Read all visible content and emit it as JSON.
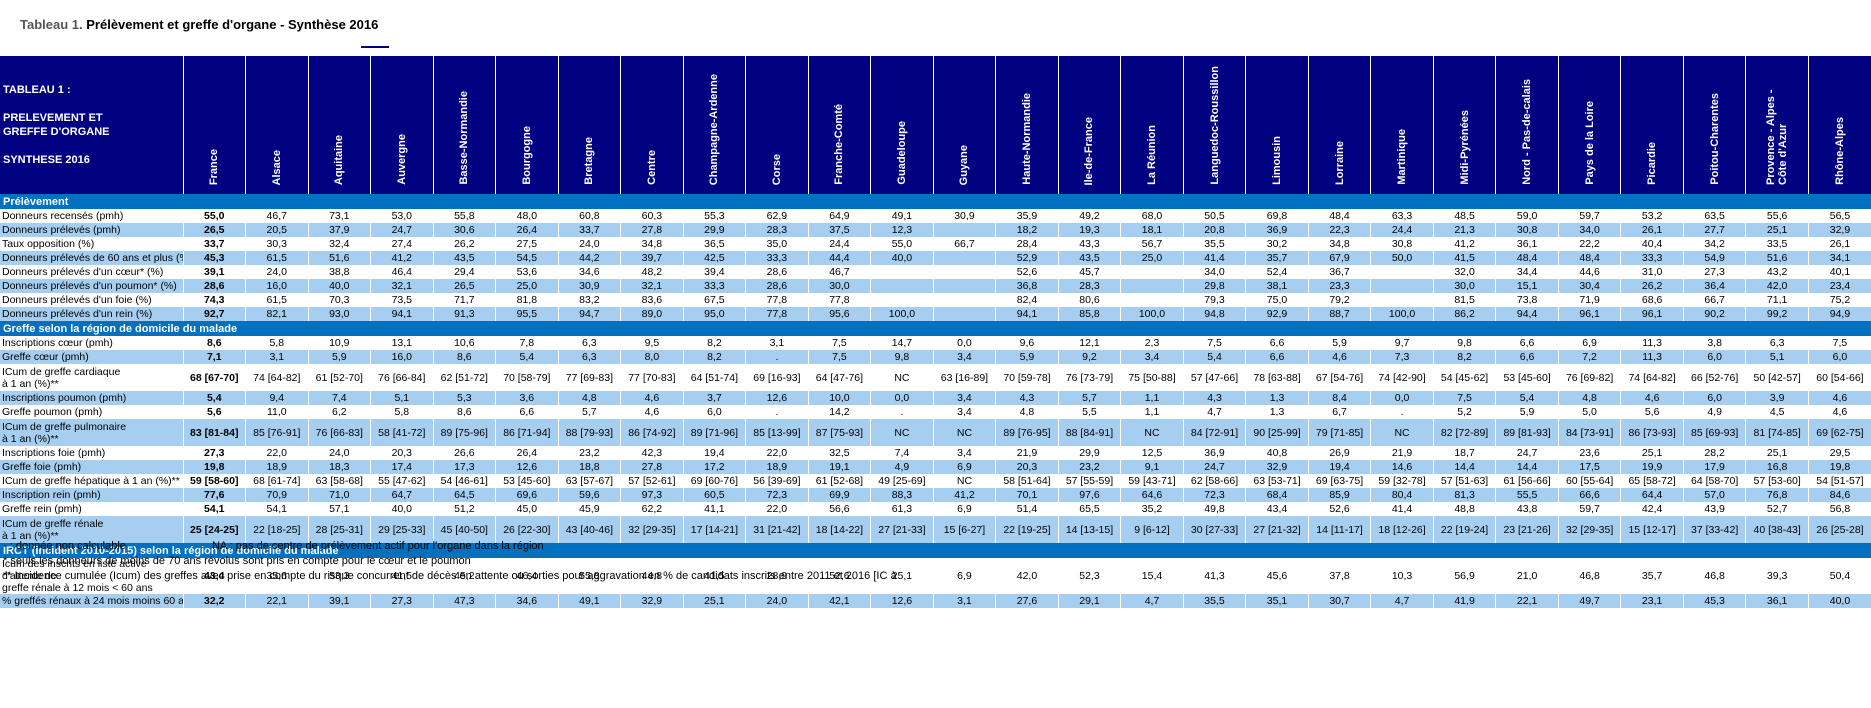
{
  "title": {
    "label": "Tableau 1.",
    "text": "Prélèvement et greffe d'organe - Synthèse 2016"
  },
  "header": {
    "intro": [
      "TABLEAU 1 :",
      "",
      "PRELEVEMENT ET",
      "GREFFE D'ORGANE",
      "",
      "SYNTHESE 2016"
    ],
    "regions": [
      "France",
      "Alsace",
      "Aquitaine",
      "Auvergne",
      "Basse-Normandie",
      "Bourgogne",
      "Bretagne",
      "Centre",
      "Champagne-Ardenne",
      "Corse",
      "Franche-Comté",
      "Guadeloupe",
      "Guyane",
      "Haute-Normandie",
      "Ile-de-France",
      "La Réunion",
      "Languedoc-Roussillon",
      "Limousin",
      "Lorraine",
      "Martinique",
      "Midi-Pyrénées",
      "Nord - Pas-de-calais",
      "Pays de la Loire",
      "Picardie",
      "Poitou-Charentes",
      "Provence - Alpes - Côte d'Azur",
      "Rhône-Alpes"
    ]
  },
  "sections": [
    {
      "title": "Prélèvement",
      "rows": [
        {
          "label": "Donneurs recensés (pmh)",
          "values": [
            "55,0",
            "46,7",
            "73,1",
            "53,0",
            "55,8",
            "48,0",
            "60,8",
            "60,3",
            "55,3",
            "62,9",
            "64,9",
            "49,1",
            "30,9",
            "35,9",
            "49,2",
            "68,0",
            "50,5",
            "69,8",
            "48,4",
            "63,3",
            "48,5",
            "59,0",
            "59,7",
            "53,2",
            "63,5",
            "55,6",
            "56,5"
          ]
        },
        {
          "label": "Donneurs prélevés (pmh)",
          "values": [
            "26,5",
            "20,5",
            "37,9",
            "24,7",
            "30,6",
            "26,4",
            "33,7",
            "27,8",
            "29,9",
            "28,3",
            "37,5",
            "12,3",
            "",
            "18,2",
            "19,3",
            "18,1",
            "20,8",
            "36,9",
            "22,3",
            "24,4",
            "21,3",
            "30,8",
            "34,0",
            "26,1",
            "27,7",
            "25,1",
            "32,9"
          ]
        },
        {
          "label": "Taux opposition (%)",
          "values": [
            "33,7",
            "30,3",
            "32,4",
            "27,4",
            "26,2",
            "27,5",
            "24,0",
            "34,8",
            "36,5",
            "35,0",
            "24,4",
            "55,0",
            "66,7",
            "28,4",
            "43,3",
            "56,7",
            "35,5",
            "30,2",
            "34,8",
            "30,8",
            "41,2",
            "36,1",
            "22,2",
            "40,4",
            "34,2",
            "33,5",
            "26,1"
          ]
        },
        {
          "label": "Donneurs prélevés de 60 ans et plus (%)",
          "values": [
            "45,3",
            "61,5",
            "51,6",
            "41,2",
            "43,5",
            "54,5",
            "44,2",
            "39,7",
            "42,5",
            "33,3",
            "44,4",
            "40,0",
            "",
            "52,9",
            "43,5",
            "25,0",
            "41,4",
            "35,7",
            "67,9",
            "50,0",
            "41,5",
            "48,4",
            "48,4",
            "33,3",
            "54,9",
            "51,6",
            "34,1"
          ]
        },
        {
          "label": "Donneurs prélevés d'un cœur* (%)",
          "values": [
            "39,1",
            "24,0",
            "38,8",
            "46,4",
            "29,4",
            "53,6",
            "34,6",
            "48,2",
            "39,4",
            "28,6",
            "46,7",
            "",
            "",
            "52,6",
            "45,7",
            "",
            "34,0",
            "52,4",
            "36,7",
            "",
            "32,0",
            "34,4",
            "44,6",
            "31,0",
            "27,3",
            "43,2",
            "40,1"
          ]
        },
        {
          "label": "Donneurs prélevés d'un poumon* (%)",
          "values": [
            "28,6",
            "16,0",
            "40,0",
            "32,1",
            "26,5",
            "25,0",
            "30,9",
            "32,1",
            "33,3",
            "28,6",
            "30,0",
            "",
            "",
            "36,8",
            "28,3",
            "",
            "29,8",
            "38,1",
            "23,3",
            "",
            "30,0",
            "15,1",
            "30,4",
            "26,2",
            "36,4",
            "42,0",
            "23,4"
          ]
        },
        {
          "label": "Donneurs prélevés d'un foie (%)",
          "values": [
            "74,3",
            "61,5",
            "70,3",
            "73,5",
            "71,7",
            "81,8",
            "83,2",
            "83,6",
            "67,5",
            "77,8",
            "77,8",
            "",
            "",
            "82,4",
            "80,6",
            "",
            "79,3",
            "75,0",
            "79,2",
            "",
            "81,5",
            "73,8",
            "71,9",
            "68,6",
            "66,7",
            "71,1",
            "75,2"
          ]
        },
        {
          "label": "Donneurs prélevés d'un rein (%)",
          "values": [
            "92,7",
            "82,1",
            "93,0",
            "94,1",
            "91,3",
            "95,5",
            "94,7",
            "89,0",
            "95,0",
            "77,8",
            "95,6",
            "100,0",
            "",
            "94,1",
            "85,8",
            "100,0",
            "94,8",
            "92,9",
            "88,7",
            "100,0",
            "86,2",
            "94,4",
            "96,1",
            "96,1",
            "90,2",
            "99,2",
            "94,9"
          ]
        }
      ]
    },
    {
      "title": "Greffe selon la région de domicile du malade",
      "rows": [
        {
          "label": "Inscriptions cœur (pmh)",
          "values": [
            "8,6",
            "5,8",
            "10,9",
            "13,1",
            "10,6",
            "7,8",
            "6,3",
            "9,5",
            "8,2",
            "3,1",
            "7,5",
            "14,7",
            "0,0",
            "9,6",
            "12,1",
            "2,3",
            "7,5",
            "6,6",
            "5,9",
            "9,7",
            "9,8",
            "6,6",
            "6,9",
            "11,3",
            "3,8",
            "6,3",
            "7,5"
          ]
        },
        {
          "label": "Greffe cœur (pmh)",
          "values": [
            "7,1",
            "3,1",
            "5,9",
            "16,0",
            "8,6",
            "5,4",
            "6,3",
            "8,0",
            "8,2",
            ".",
            "7,5",
            "9,8",
            "3,4",
            "5,9",
            "9,2",
            "3,4",
            "5,4",
            "6,6",
            "4,6",
            "7,3",
            "8,2",
            "6,6",
            "7,2",
            "11,3",
            "6,0",
            "5,1",
            "6,0"
          ]
        },
        {
          "label": "ICum de greffe cardiaque\nà 1 an (%)**",
          "values": [
            "68 [67-70]",
            "74 [64-82]",
            "61 [52-70]",
            "76 [66-84]",
            "62 [51-72]",
            "70 [58-79]",
            "77 [69-83]",
            "77 [70-83]",
            "64 [51-74]",
            "69 [16-93]",
            "64 [47-76]",
            "NC",
            "63 [16-89]",
            "70 [59-78]",
            "76 [73-79]",
            "75 [50-88]",
            "57 [47-66]",
            "78 [63-88]",
            "67 [54-76]",
            "74 [42-90]",
            "54 [45-62]",
            "53 [45-60]",
            "76 [69-82]",
            "74 [64-82]",
            "66 [52-76]",
            "50 [42-57]",
            "60 [54-66]"
          ]
        },
        {
          "label": "Inscriptions poumon (pmh)",
          "values": [
            "5,4",
            "9,4",
            "7,4",
            "5,1",
            "5,3",
            "3,6",
            "4,8",
            "4,6",
            "3,7",
            "12,6",
            "10,0",
            "0,0",
            "3,4",
            "4,3",
            "5,7",
            "1,1",
            "4,3",
            "1,3",
            "8,4",
            "0,0",
            "7,5",
            "5,4",
            "4,8",
            "4,6",
            "6,0",
            "3,9",
            "4,6"
          ]
        },
        {
          "label": "Greffe poumon (pmh)",
          "values": [
            "5,6",
            "11,0",
            "6,2",
            "5,8",
            "8,6",
            "6,6",
            "5,7",
            "4,6",
            "6,0",
            ".",
            "14,2",
            ".",
            "3,4",
            "4,8",
            "5,5",
            "1,1",
            "4,7",
            "1,3",
            "6,7",
            ".",
            "5,2",
            "5,9",
            "5,0",
            "5,6",
            "4,9",
            "4,5",
            "4,6"
          ]
        },
        {
          "label": "ICum de greffe pulmonaire\nà 1 an (%)**",
          "values": [
            "83 [81-84]",
            "85 [76-91]",
            "76 [66-83]",
            "58 [41-72]",
            "89 [75-96]",
            "86 [71-94]",
            "88 [79-93]",
            "86 [74-92]",
            "89 [71-96]",
            "85 [13-99]",
            "87 [75-93]",
            "NC",
            "NC",
            "89 [76-95]",
            "88 [84-91]",
            "NC",
            "84 [72-91]",
            "90 [25-99]",
            "79 [71-85]",
            "NC",
            "82 [72-89]",
            "89 [81-93]",
            "84 [73-91]",
            "86 [73-93]",
            "85 [69-93]",
            "81 [74-85]",
            "69 [62-75]"
          ]
        },
        {
          "label": "Inscriptions foie (pmh)",
          "values": [
            "27,3",
            "22,0",
            "24,0",
            "20,3",
            "26,6",
            "26,4",
            "23,2",
            "42,3",
            "19,4",
            "22,0",
            "32,5",
            "7,4",
            "3,4",
            "21,9",
            "29,9",
            "12,5",
            "36,9",
            "40,8",
            "26,9",
            "21,9",
            "18,7",
            "24,7",
            "23,6",
            "25,1",
            "28,2",
            "25,1",
            "29,5"
          ]
        },
        {
          "label": "Greffe foie (pmh)",
          "values": [
            "19,8",
            "18,9",
            "18,3",
            "17,4",
            "17,3",
            "12,6",
            "18,8",
            "27,8",
            "17,2",
            "18,9",
            "19,1",
            "4,9",
            "6,9",
            "20,3",
            "23,2",
            "9,1",
            "24,7",
            "32,9",
            "19,4",
            "14,6",
            "14,4",
            "14,4",
            "17,5",
            "19,9",
            "17,9",
            "16,8",
            "19,8"
          ]
        },
        {
          "label": "ICum de greffe hépatique à 1 an (%)**",
          "values": [
            "59 [58-60]",
            "68 [61-74]",
            "63 [58-68]",
            "55 [47-62]",
            "54 [46-61]",
            "53 [45-60]",
            "63 [57-67]",
            "57 [52-61]",
            "69 [60-76]",
            "56 [39-69]",
            "61 [52-68]",
            "49 [25-69]",
            "NC",
            "58 [51-64]",
            "57 [55-59]",
            "59 [43-71]",
            "62 [58-66]",
            "63 [53-71]",
            "69 [63-75]",
            "59 [32-78]",
            "57 [51-63]",
            "61 [56-66]",
            "60 [55-64]",
            "65 [58-72]",
            "64 [58-70]",
            "57 [53-60]",
            "54 [51-57]"
          ]
        },
        {
          "label": "Inscription rein (pmh)",
          "values": [
            "77,6",
            "70,9",
            "71,0",
            "64,7",
            "64,5",
            "69,6",
            "59,6",
            "97,3",
            "60,5",
            "72,3",
            "69,9",
            "88,3",
            "41,2",
            "70,1",
            "97,6",
            "64,6",
            "72,3",
            "68,4",
            "85,9",
            "80,4",
            "81,3",
            "55,5",
            "66,6",
            "64,4",
            "57,0",
            "76,8",
            "84,6"
          ]
        },
        {
          "label": "Greffe rein (pmh)",
          "values": [
            "54,1",
            "54,1",
            "57,1",
            "40,0",
            "51,2",
            "45,0",
            "45,9",
            "62,2",
            "41,1",
            "22,0",
            "56,6",
            "61,3",
            "6,9",
            "51,4",
            "65,5",
            "35,2",
            "49,8",
            "43,4",
            "52,6",
            "41,4",
            "48,8",
            "43,8",
            "59,7",
            "42,4",
            "43,9",
            "52,7",
            "56,8"
          ]
        },
        {
          "label": "ICum de greffe rénale\nà 1 an (%)**",
          "values": [
            "25 [24-25]",
            "22 [18-25]",
            "28 [25-31]",
            "29 [25-33]",
            "45 [40-50]",
            "26 [22-30]",
            "43 [40-46]",
            "32 [29-35]",
            "17 [14-21]",
            "31 [21-42]",
            "18 [14-22]",
            "27 [21-33]",
            "15 [6-27]",
            "22 [19-25]",
            "14 [13-15]",
            "9 [6-12]",
            "30 [27-33]",
            "27 [21-32]",
            "14 [11-17]",
            "18 [12-26]",
            "22 [19-24]",
            "23 [21-26]",
            "32 [29-35]",
            "15 [12-17]",
            "37 [33-42]",
            "40 [38-43]",
            "26 [25-28]"
          ]
        }
      ]
    },
    {
      "title": "IRCT (incident 2010-2015) selon la région de domicile du malade",
      "rows": [
        {
          "label": "Icum des inscrits en liste active d'attente de\ngreffe rénale à 12 mois < 60 ans",
          "values": [
            "43,4",
            "35,6",
            "53,3",
            "41,5",
            "45,2",
            "46,4",
            "55,8",
            "44,8",
            "41,5",
            "28,9",
            "52,6",
            "25,1",
            "6,9",
            "42,0",
            "52,3",
            "15,4",
            "41,3",
            "45,6",
            "37,8",
            "10,3",
            "56,9",
            "21,0",
            "46,8",
            "35,7",
            "46,8",
            "39,3",
            "50,4"
          ]
        },
        {
          "label": "% greffés rénaux à 24 mois moins 60 ans",
          "values": [
            "32,2",
            "22,1",
            "39,1",
            "27,3",
            "47,3",
            "34,6",
            "49,1",
            "32,9",
            "25,1",
            "24,0",
            "42,1",
            "12,6",
            "3,1",
            "27,6",
            "29,1",
            "4,7",
            "35,5",
            "35,1",
            "30,7",
            "4,7",
            "41,9",
            "22,1",
            "49,7",
            "23,1",
            "45,3",
            "36,1",
            "40,0"
          ]
        }
      ]
    }
  ],
  "notes": {
    "a": "- : donnée non calculable",
    "b": "NA : pas de centre de prélèvement actif pour l'organe dans la région",
    "c": "* seuls les donneurs de moins de 70 ans révolus sont pris en compte pour  le cœur et le poumon",
    "d": "** Incidence cumulée (Icum) des greffes avec prise en compte du risque concurrent de décès en attente ou sorties pour aggravation en % de candidats inscrits entre 2011 et 2016 [IC à"
  }
}
